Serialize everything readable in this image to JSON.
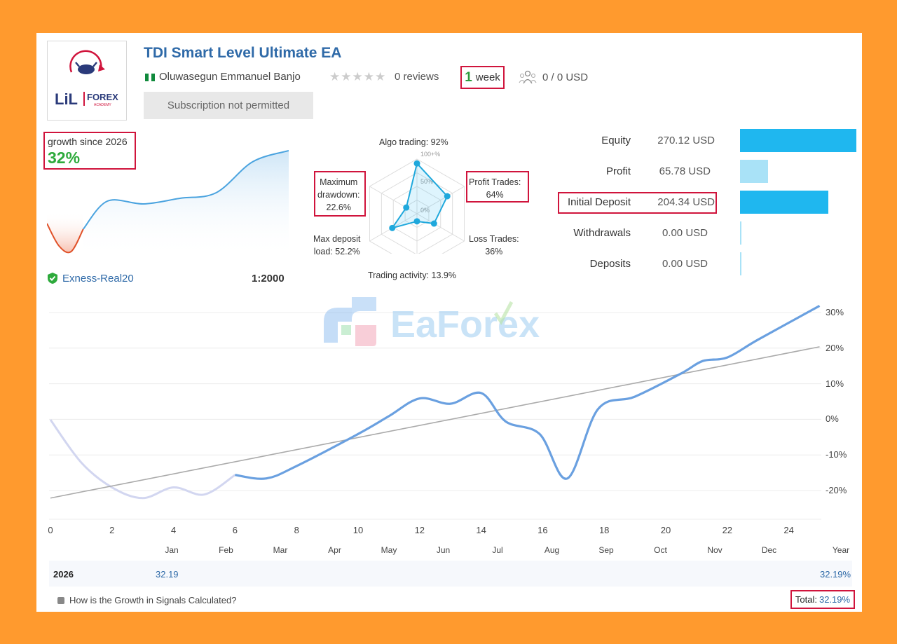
{
  "header": {
    "title": "TDI Smart Level Ultimate EA",
    "author": "Oluwasegun Emmanuel Banjo",
    "reviews": "0 reviews",
    "age_number": "1",
    "age_unit": "week",
    "subscribers": "0 / 0 USD",
    "subscribe_button": "Subscription not permitted",
    "logo": {
      "main": "LiL",
      "forex": "FOREX",
      "academy": "ACADEMY"
    }
  },
  "summary": {
    "growth_label": "growth since 2026",
    "growth_value": "32%",
    "server": "Exness-Real20",
    "leverage": "1:2000"
  },
  "radar": {
    "algo_label": "Algo trading: 92%",
    "profit_label_1": "Profit Trades:",
    "profit_label_2": "64%",
    "loss_label_1": "Loss Trades:",
    "loss_label_2": "36%",
    "activity_label": "Trading activity: 13.9%",
    "load_label_1": "Max deposit",
    "load_label_2": "load: 52.2%",
    "dd_label_1": "Maximum",
    "dd_label_2": "drawdown:",
    "dd_label_3": "22.6%",
    "scale_100": "100+%",
    "scale_50": "50%",
    "scale_0": "0%",
    "values": {
      "algo": 0.92,
      "profit": 0.64,
      "loss": 0.36,
      "activity": 0.139,
      "load": 0.522,
      "drawdown": 0.226
    }
  },
  "stats": [
    {
      "label": "Equity",
      "value": "270.12 USD",
      "level": 1.0,
      "color": "#1fb7ef"
    },
    {
      "label": "Profit",
      "value": "65.78 USD",
      "level": 0.24,
      "color": "#a9e2f7"
    },
    {
      "label": "Initial Deposit",
      "value": "204.34 USD",
      "level": 0.76,
      "color": "#1fb7ef"
    },
    {
      "label": "Withdrawals",
      "value": "0.00 USD",
      "level": 0.0,
      "color": "#a9e2f7"
    },
    {
      "label": "Deposits",
      "value": "0.00 USD",
      "level": 0.0,
      "color": "#a9e2f7"
    }
  ],
  "watermark": "EaForex",
  "chart_data": {
    "type": "line",
    "y_ticks": [
      "30%",
      "20%",
      "10%",
      "0%",
      "-10%",
      "-20%"
    ],
    "x_ticks": [
      "0",
      "2",
      "4",
      "6",
      "8",
      "10",
      "12",
      "14",
      "16",
      "18",
      "20",
      "22",
      "24"
    ],
    "month_labels": [
      "Jan",
      "Feb",
      "Mar",
      "Apr",
      "May",
      "Jun",
      "Jul",
      "Aug",
      "Sep",
      "Oct",
      "Nov",
      "Dec",
      "Year"
    ],
    "ylim": [
      -28,
      34
    ],
    "xlim": [
      0,
      25
    ],
    "series": [
      {
        "style": "faded",
        "points": [
          [
            0,
            0
          ],
          [
            1,
            -12
          ],
          [
            2,
            -19
          ],
          [
            3,
            -22
          ],
          [
            4,
            -19
          ],
          [
            5,
            -21
          ],
          [
            6,
            -15.5
          ]
        ]
      },
      {
        "style": "main",
        "points": [
          [
            6,
            -15.5
          ],
          [
            7,
            -16.5
          ],
          [
            8,
            -13
          ],
          [
            10,
            -4
          ],
          [
            11,
            1
          ],
          [
            12,
            6
          ],
          [
            13,
            4.5
          ],
          [
            14,
            7.5
          ],
          [
            14.8,
            -0.5
          ],
          [
            15.9,
            -4
          ],
          [
            16.8,
            -16.5
          ],
          [
            17.8,
            3
          ],
          [
            19,
            6.5
          ],
          [
            20.5,
            13
          ],
          [
            21.2,
            16.5
          ],
          [
            22,
            17.5
          ],
          [
            23,
            22.5
          ],
          [
            25,
            32
          ]
        ]
      },
      {
        "style": "trend",
        "points": [
          [
            0,
            -22
          ],
          [
            25,
            20.5
          ]
        ]
      }
    ],
    "mini_chart": {
      "points": [
        [
          0,
          -2
        ],
        [
          0.5,
          -6
        ],
        [
          1,
          -7
        ],
        [
          1.5,
          -3
        ],
        [
          2.5,
          2
        ],
        [
          4,
          1.5
        ],
        [
          5.5,
          2.5
        ],
        [
          7,
          3.5
        ],
        [
          8.5,
          9
        ],
        [
          10,
          11
        ]
      ],
      "ylim": [
        -8,
        12
      ]
    }
  },
  "year_row": {
    "year": "2026",
    "value": "32.19",
    "total": "32.19%"
  },
  "footer": {
    "help_link": "How is the Growth in Signals Calculated?",
    "total_label": "Total:",
    "total_value": "32.19%"
  }
}
